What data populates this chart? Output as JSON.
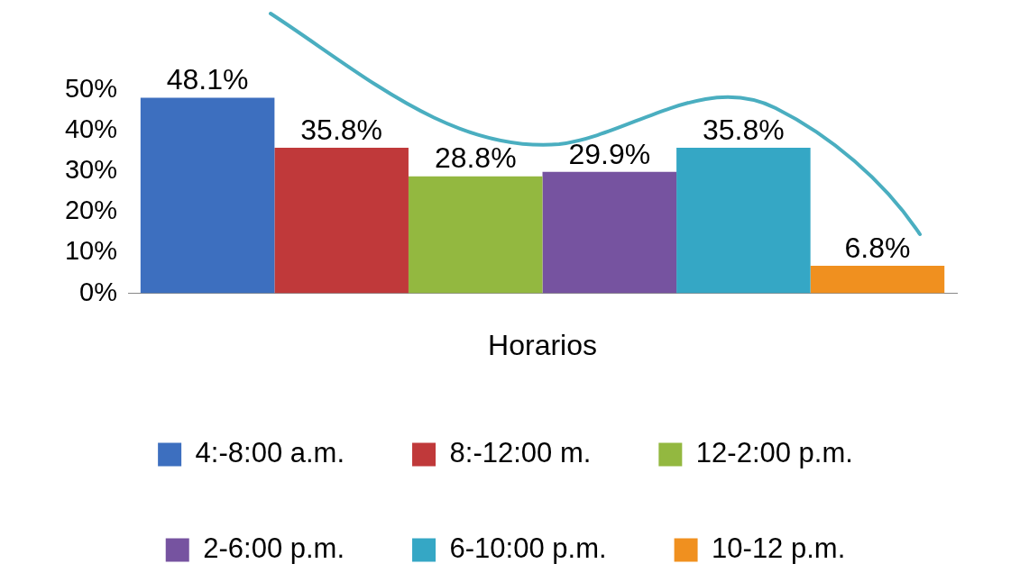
{
  "chart_data": {
    "type": "bar",
    "xlabel": "Horarios",
    "categories": [
      null
    ],
    "series": [
      {
        "name": "4:-8:00 a.m.",
        "color": "#3d6fbf",
        "values": [
          48.1
        ],
        "value_labels": [
          "48.1%"
        ]
      },
      {
        "name": "8:-12:00 m.",
        "color": "#c0393a",
        "values": [
          35.8
        ],
        "value_labels": [
          "35.8%"
        ]
      },
      {
        "name": "12-2:00 p.m.",
        "color": "#93b840",
        "values": [
          28.8
        ],
        "value_labels": [
          "28.8%"
        ]
      },
      {
        "name": "2-6:00 p.m.",
        "color": "#7653a0",
        "values": [
          29.9
        ],
        "value_labels": [
          "29.9%"
        ]
      },
      {
        "name": "6-10:00 p.m.",
        "color": "#35a7c5",
        "values": [
          35.8
        ],
        "value_labels": [
          "35.8%"
        ]
      },
      {
        "name": "10-12 p.m.",
        "color": "#f0901f",
        "values": [
          6.8
        ],
        "value_labels": [
          "6.8%"
        ]
      }
    ],
    "ylim": [
      0,
      50
    ],
    "yticks": [
      {
        "value": 0,
        "label": "0%"
      },
      {
        "value": 10,
        "label": "10%"
      },
      {
        "value": 20,
        "label": "20%"
      },
      {
        "value": 30,
        "label": "30%"
      },
      {
        "value": 40,
        "label": "40%"
      },
      {
        "value": 50,
        "label": "50%"
      }
    ],
    "grid": false,
    "legend": "bottom"
  }
}
